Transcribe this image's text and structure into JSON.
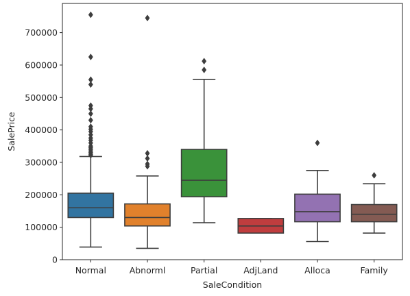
{
  "chart_data": {
    "type": "boxplot",
    "title": "",
    "xlabel": "SaleCondition",
    "ylabel": "SalePrice",
    "ylim": [
      0,
      790000
    ],
    "yticks": [
      0,
      100000,
      200000,
      300000,
      400000,
      500000,
      600000,
      700000
    ],
    "yticklabels": [
      "0",
      "100000",
      "200000",
      "300000",
      "400000",
      "500000",
      "600000",
      "700000"
    ],
    "grid": false,
    "categories": [
      "Normal",
      "Abnorml",
      "Partial",
      "AdjLand",
      "Alloca",
      "Family"
    ],
    "colors": [
      "#3274a1",
      "#e1812c",
      "#3a923a",
      "#c03d3e",
      "#9372b2",
      "#845b53"
    ],
    "boxes": [
      {
        "category": "Normal",
        "whisker_low": 39000,
        "q1": 130000,
        "median": 160000,
        "q3": 205000,
        "whisker_high": 318000,
        "outliers": [
          755000,
          625000,
          555000,
          540000,
          475000,
          465000,
          450000,
          430000,
          410000,
          402000,
          395000,
          385000,
          375000,
          368000,
          360000,
          350000,
          345000,
          340000,
          335000,
          330000,
          325000,
          322000
        ]
      },
      {
        "category": "Abnorml",
        "whisker_low": 35000,
        "q1": 104000,
        "median": 130000,
        "q3": 172000,
        "whisker_high": 258000,
        "outliers": [
          745000,
          328000,
          312000,
          295000,
          288000
        ]
      },
      {
        "category": "Partial",
        "whisker_low": 114000,
        "q1": 194000,
        "median": 245000,
        "q3": 340000,
        "whisker_high": 556000,
        "outliers": [
          612000,
          585000
        ]
      },
      {
        "category": "AdjLand",
        "whisker_low": 82000,
        "q1": 82000,
        "median": 104000,
        "q3": 127000,
        "whisker_high": 127000,
        "outliers": []
      },
      {
        "category": "Alloca",
        "whisker_low": 56000,
        "q1": 117000,
        "median": 148000,
        "q3": 202000,
        "whisker_high": 275000,
        "outliers": [
          360000
        ]
      },
      {
        "category": "Family",
        "whisker_low": 82000,
        "q1": 117000,
        "median": 140000,
        "q3": 170000,
        "whisker_high": 234000,
        "outliers": [
          260000
        ]
      }
    ]
  }
}
